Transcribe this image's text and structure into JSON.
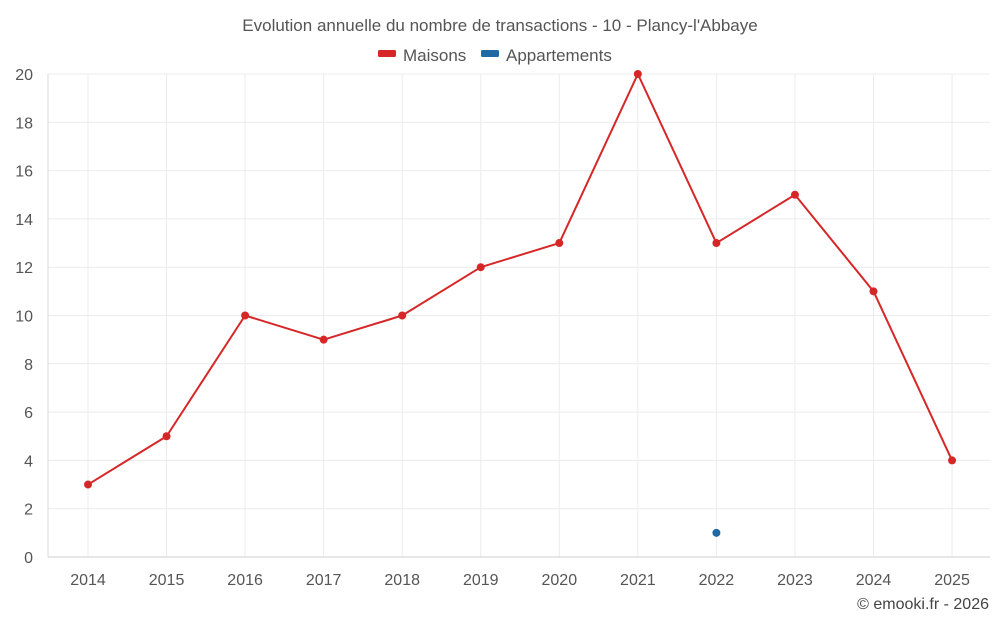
{
  "chart_data": {
    "type": "line",
    "title": "Evolution annuelle du nombre de transactions - 10 - Plancy-l'Abbaye",
    "categories": [
      "2014",
      "2015",
      "2016",
      "2017",
      "2018",
      "2019",
      "2020",
      "2021",
      "2022",
      "2023",
      "2024",
      "2025"
    ],
    "series": [
      {
        "name": "Maisons",
        "color": "#d62728",
        "values": [
          3,
          5,
          10,
          9,
          10,
          12,
          13,
          20,
          13,
          15,
          11,
          4
        ]
      },
      {
        "name": "Appartements",
        "color": "#1f6aa5",
        "values": [
          null,
          null,
          null,
          null,
          null,
          null,
          null,
          null,
          1,
          null,
          null,
          null
        ]
      }
    ],
    "ylim": [
      0,
      20
    ],
    "yticks": [
      0,
      2,
      4,
      6,
      8,
      10,
      12,
      14,
      16,
      18,
      20
    ],
    "legend_position": "top-center",
    "grid": true
  },
  "credit": "© emooki.fr - 2026"
}
